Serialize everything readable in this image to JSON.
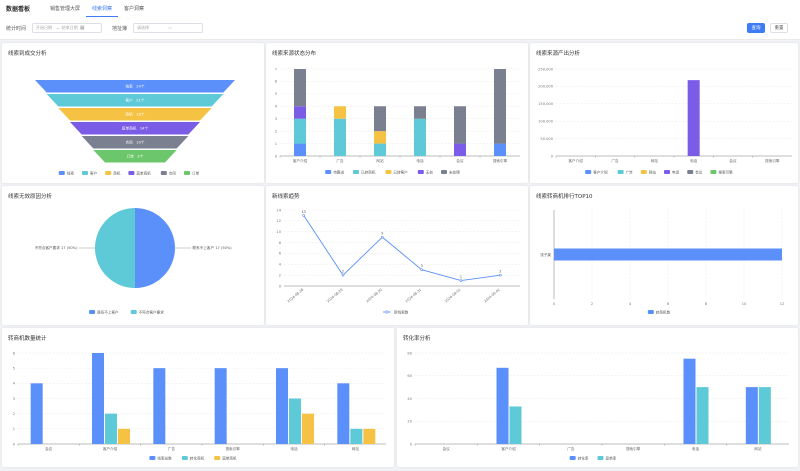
{
  "header": {
    "app_title": "数据看板",
    "tabs": [
      {
        "label": "销售管理大屏",
        "active": false
      },
      {
        "label": "线索洞察",
        "active": true
      },
      {
        "label": "客户洞察",
        "active": false
      }
    ]
  },
  "filters": {
    "time_label": "统计时间",
    "start_placeholder": "开始日期",
    "separator": "~",
    "end_placeholder": "结束日期",
    "keyword_label": "地址簿",
    "keyword_placeholder": "请选择",
    "query_button": "查询",
    "reset_button": "重置"
  },
  "colors": {
    "blue": "#5b8ff9",
    "teal": "#5ecad8",
    "yellow": "#f6c244",
    "purple": "#7a5ce6",
    "gray": "#7a8090",
    "green": "#6cc76c"
  },
  "chart_data": [
    {
      "id": "funnel",
      "title": "线索到成交分析",
      "type": "funnel",
      "stages": [
        {
          "name": "线索",
          "label": "线索　24个",
          "color": "#5b8ff9"
        },
        {
          "name": "客户",
          "label": "客户　21个",
          "color": "#5ecad8"
        },
        {
          "name": "商机",
          "label": "商机　18个",
          "color": "#f6c244"
        },
        {
          "name": "赢单商机",
          "label": "赢单商机　14个",
          "color": "#7a5ce6"
        },
        {
          "name": "合同",
          "label": "合同　10个",
          "color": "#7a8090"
        },
        {
          "name": "订单",
          "label": "订单　2个",
          "color": "#6cc76c"
        }
      ],
      "values": [
        24,
        21,
        18,
        14,
        10,
        2
      ],
      "legend": [
        "线索",
        "客户",
        "商机",
        "赢单商机",
        "合同",
        "订单"
      ]
    },
    {
      "id": "source_status",
      "title": "线索来源状态分布",
      "type": "bar",
      "stacked": true,
      "categories": [
        "客户介绍",
        "广告",
        "网站",
        "电话",
        "会议",
        "搜索引擎"
      ],
      "ylim": [
        0,
        7
      ],
      "yticks": [
        0,
        1,
        2,
        3,
        4,
        5,
        6,
        7
      ],
      "series": [
        {
          "name": "待跟进",
          "color": "#5b8ff9",
          "values": [
            1,
            0,
            0,
            0,
            0,
            1
          ]
        },
        {
          "name": "已转商机",
          "color": "#5ecad8",
          "values": [
            2,
            3,
            1,
            3,
            0,
            0
          ]
        },
        {
          "name": "已转客户",
          "color": "#f6c244",
          "values": [
            0,
            1,
            1,
            0,
            0,
            0
          ]
        },
        {
          "name": "无效",
          "color": "#7a5ce6",
          "values": [
            1,
            0,
            0,
            0,
            1,
            0
          ]
        },
        {
          "name": "未处理",
          "color": "#7a8090",
          "values": [
            3,
            0,
            2,
            1,
            3,
            6
          ]
        }
      ]
    },
    {
      "id": "source_output",
      "title": "线索来源产出分析",
      "type": "bar",
      "categories": [
        "客户介绍",
        "广告",
        "网站",
        "电话",
        "会议",
        "搜索引擎"
      ],
      "ylim": [
        0,
        250000
      ],
      "yticks": [
        0,
        50000,
        100000,
        150000,
        200000,
        250000
      ],
      "ytick_labels": [
        "0",
        "50,000",
        "100,000",
        "150,000",
        "200,000",
        "250,000"
      ],
      "series": [
        {
          "name": "客户介绍",
          "color": "#5b8ff9",
          "values": [
            0,
            0,
            0,
            0,
            0,
            0
          ]
        },
        {
          "name": "广告",
          "color": "#5ecad8",
          "values": [
            0,
            0,
            0,
            0,
            0,
            0
          ]
        },
        {
          "name": "网站",
          "color": "#f6c244",
          "values": [
            0,
            0,
            0,
            0,
            0,
            0
          ]
        },
        {
          "name": "电话",
          "color": "#7a5ce6",
          "values": [
            0,
            0,
            0,
            218000,
            0,
            0
          ]
        },
        {
          "name": "会议",
          "color": "#7a8090",
          "values": [
            0,
            0,
            0,
            0,
            0,
            0
          ]
        },
        {
          "name": "搜索引擎",
          "color": "#6cc76c",
          "values": [
            0,
            0,
            0,
            0,
            0,
            0
          ]
        }
      ]
    },
    {
      "id": "lost_reason",
      "title": "线索无效原因分析",
      "type": "pie",
      "slices": [
        {
          "name": "联系不上客户",
          "value": 17,
          "label": "联系不上客户 17 (50%)",
          "color": "#5b8ff9"
        },
        {
          "name": "不符合客户要求",
          "value": 17,
          "label": "不符合客户要求 17 (50%)",
          "color": "#5ecad8"
        }
      ]
    },
    {
      "id": "new_trend",
      "title": "新线索趋势",
      "type": "line",
      "x": [
        "2024-08-28",
        "2024-08-29",
        "2024-08-30",
        "2024-08-31",
        "2024-09-01",
        "2024-09-02"
      ],
      "values": [
        13,
        2,
        9,
        3,
        1,
        2
      ],
      "ylim": [
        0,
        14
      ],
      "yticks": [
        0,
        2,
        4,
        6,
        8,
        10,
        12,
        14
      ],
      "series_name": "新线索数",
      "color": "#5b8ff9"
    },
    {
      "id": "owner_top10",
      "title": "线索转商机排行TOP10",
      "type": "bar",
      "horizontal": true,
      "categories": [
        "张子豪"
      ],
      "values": [
        12
      ],
      "xlim": [
        0,
        12
      ],
      "xticks": [
        0,
        2,
        4,
        6,
        8,
        10,
        12
      ],
      "series_name": "转商机数",
      "color": "#5b8ff9"
    },
    {
      "id": "opportunity_count",
      "title": "转商机数量统计",
      "type": "bar",
      "categories": [
        "会议",
        "客户介绍",
        "广告",
        "搜索引擎",
        "电话",
        "网站"
      ],
      "ylim": [
        0,
        6
      ],
      "yticks": [
        0,
        1,
        2,
        3,
        4,
        5,
        6
      ],
      "series": [
        {
          "name": "线索总数",
          "color": "#5b8ff9",
          "values": [
            4,
            6,
            5,
            5,
            5,
            4
          ]
        },
        {
          "name": "转化商机",
          "color": "#5ecad8",
          "values": [
            0,
            2,
            0,
            0,
            3,
            1
          ]
        },
        {
          "name": "赢单商机",
          "color": "#f6c244",
          "values": [
            0,
            1,
            0,
            0,
            2,
            1
          ]
        }
      ]
    },
    {
      "id": "conversion_rate",
      "title": "转化率分析",
      "type": "bar",
      "categories": [
        "会议",
        "客户介绍",
        "广告",
        "搜索引擎",
        "电话",
        "网站"
      ],
      "ylim": [
        0,
        80
      ],
      "yticks": [
        0,
        20,
        40,
        60,
        80
      ],
      "series": [
        {
          "name": "转化率",
          "color": "#5b8ff9",
          "values": [
            0,
            67,
            0,
            0,
            75,
            50
          ]
        },
        {
          "name": "赢单率",
          "color": "#5ecad8",
          "values": [
            0,
            33,
            0,
            0,
            50,
            50
          ]
        }
      ]
    }
  ]
}
